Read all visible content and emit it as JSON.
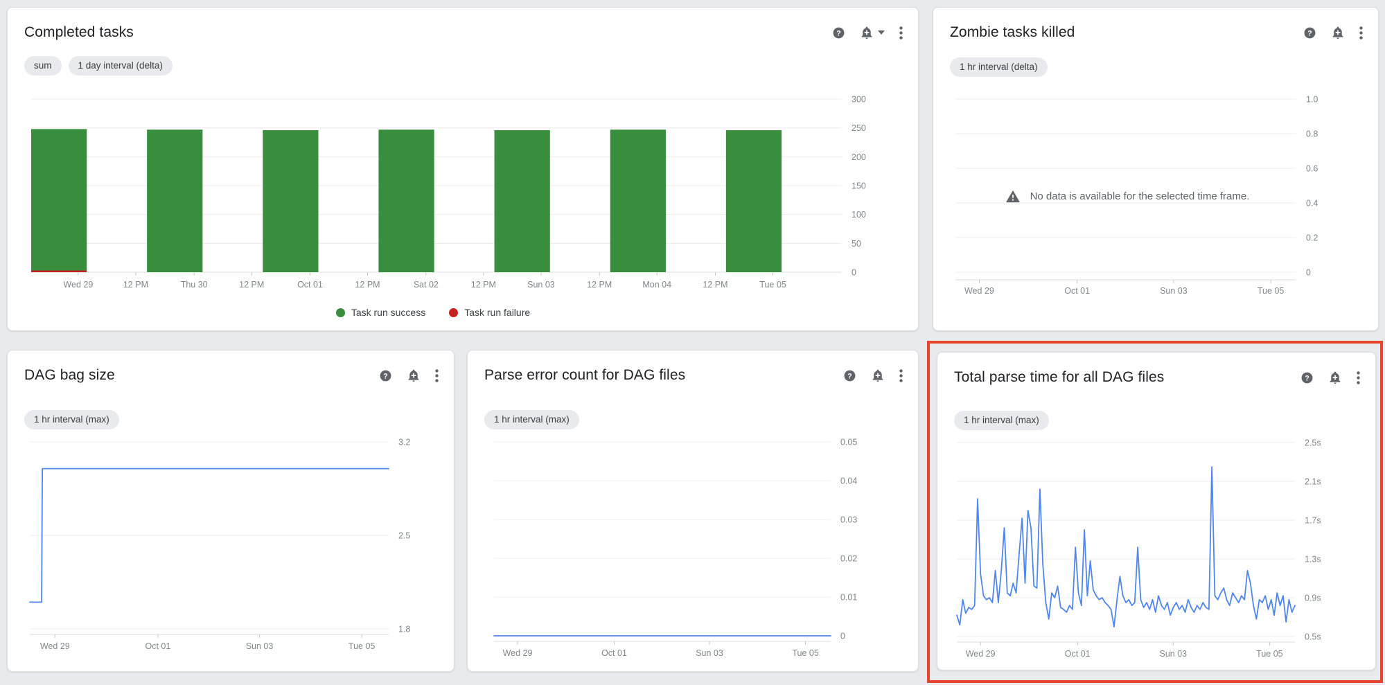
{
  "page": {
    "background": "#e8eaed",
    "highlight_color": "#e8432c"
  },
  "cards": {
    "completed_tasks": {
      "title": "Completed tasks",
      "chips": [
        "sum",
        "1 day interval (delta)"
      ],
      "icons": [
        "help-icon",
        "add-alert-icon",
        "dropdown-caret-icon",
        "more-vert-icon"
      ],
      "legend": [
        {
          "label": "Task run success",
          "color": "#388e3c"
        },
        {
          "label": "Task run failure",
          "color": "#c5221f"
        }
      ]
    },
    "zombie_tasks": {
      "title": "Zombie tasks killed",
      "chips": [
        "1 hr interval (delta)"
      ],
      "icons": [
        "help-icon",
        "add-alert-icon",
        "more-vert-icon"
      ],
      "no_data_message": "No data is available for the selected time frame."
    },
    "dag_bag_size": {
      "title": "DAG bag size",
      "chips": [
        "1 hr interval (max)"
      ],
      "icons": [
        "help-icon",
        "add-alert-icon",
        "more-vert-icon"
      ]
    },
    "parse_error_count": {
      "title": "Parse error count for DAG files",
      "chips": [
        "1 hr interval (max)"
      ],
      "icons": [
        "help-icon",
        "add-alert-icon",
        "more-vert-icon"
      ]
    },
    "total_parse_time": {
      "title": "Total parse time for all DAG files",
      "chips": [
        "1 hr interval (max)"
      ],
      "icons": [
        "help-icon",
        "add-alert-icon",
        "more-vert-icon"
      ],
      "highlighted": true
    }
  },
  "chart_data": [
    {
      "id": "completed_tasks",
      "type": "bar",
      "title": "Completed tasks",
      "categories": [
        "Wed 29",
        "Thu 30",
        "Oct 01",
        "Sat 02",
        "Sun 03",
        "Mon 04",
        "Tue 05"
      ],
      "series": [
        {
          "name": "Task run success",
          "color": "#388e3c",
          "values": [
            245,
            247,
            246,
            247,
            246,
            247,
            246
          ]
        },
        {
          "name": "Task run failure",
          "color": "#c5221f",
          "values": [
            3,
            0,
            0,
            0,
            0,
            0,
            0
          ]
        }
      ],
      "xticks": [
        {
          "label": "Wed 29",
          "pos": 0.058
        },
        {
          "label": "12 PM",
          "pos": 0.129
        },
        {
          "label": "Thu 30",
          "pos": 0.201
        },
        {
          "label": "12 PM",
          "pos": 0.272
        },
        {
          "label": "Oct 01",
          "pos": 0.344
        },
        {
          "label": "12 PM",
          "pos": 0.415
        },
        {
          "label": "Sat 02",
          "pos": 0.487
        },
        {
          "label": "12 PM",
          "pos": 0.558
        },
        {
          "label": "Sun 03",
          "pos": 0.629
        },
        {
          "label": "12 PM",
          "pos": 0.701
        },
        {
          "label": "Mon 04",
          "pos": 0.772
        },
        {
          "label": "12 PM",
          "pos": 0.844
        },
        {
          "label": "Tue 05",
          "pos": 0.915
        }
      ],
      "yticks": [
        {
          "label": "300",
          "value": 300
        },
        {
          "label": "250",
          "value": 250
        },
        {
          "label": "200",
          "value": 200
        },
        {
          "label": "150",
          "value": 150
        },
        {
          "label": "100",
          "value": 100
        },
        {
          "label": "50",
          "value": 50
        },
        {
          "label": "0",
          "value": 0
        }
      ],
      "ylim": [
        0,
        300
      ],
      "grid": true,
      "legend_position": "bottom"
    },
    {
      "id": "zombie_tasks",
      "type": "line",
      "title": "Zombie tasks killed",
      "no_data": true,
      "series": [],
      "xticks": [
        {
          "label": "Wed 29",
          "pos": 0.07
        },
        {
          "label": "Oct 01",
          "pos": 0.357
        },
        {
          "label": "Sun 03",
          "pos": 0.64
        },
        {
          "label": "Tue 05",
          "pos": 0.925
        }
      ],
      "yticks": [
        {
          "label": "1.0",
          "value": 1.0
        },
        {
          "label": "0.8",
          "value": 0.8
        },
        {
          "label": "0.6",
          "value": 0.6
        },
        {
          "label": "0.4",
          "value": 0.4
        },
        {
          "label": "0.2",
          "value": 0.2
        },
        {
          "label": "0",
          "value": 0
        }
      ],
      "ylim": [
        0,
        1.0
      ],
      "grid": true
    },
    {
      "id": "dag_bag_size",
      "type": "line",
      "title": "DAG bag size",
      "series": [
        {
          "name": "DAG bag size",
          "color": "#5086ec",
          "points": [
            [
              0,
              2.0
            ],
            [
              0.033,
              2.0
            ],
            [
              0.035,
              3.0
            ],
            [
              1,
              3.0
            ]
          ]
        }
      ],
      "xticks": [
        {
          "label": "Wed 29",
          "pos": 0.07
        },
        {
          "label": "Oct 01",
          "pos": 0.357
        },
        {
          "label": "Sun 03",
          "pos": 0.64
        },
        {
          "label": "Tue 05",
          "pos": 0.925
        }
      ],
      "yticks": [
        {
          "label": "3.2",
          "value": 3.2
        },
        {
          "label": "2.5",
          "value": 2.5
        },
        {
          "label": "1.8",
          "value": 1.8
        }
      ],
      "ylim": [
        1.8,
        3.2
      ],
      "grid": true
    },
    {
      "id": "parse_error_count",
      "type": "line",
      "title": "Parse error count for DAG files",
      "series": [
        {
          "name": "Parse error count",
          "color": "#5086ec",
          "points": [
            [
              0,
              0
            ],
            [
              1,
              0
            ]
          ]
        }
      ],
      "xticks": [
        {
          "label": "Wed 29",
          "pos": 0.07
        },
        {
          "label": "Oct 01",
          "pos": 0.357
        },
        {
          "label": "Sun 03",
          "pos": 0.64
        },
        {
          "label": "Tue 05",
          "pos": 0.925
        }
      ],
      "yticks": [
        {
          "label": "0.05",
          "value": 0.05
        },
        {
          "label": "0.04",
          "value": 0.04
        },
        {
          "label": "0.03",
          "value": 0.03
        },
        {
          "label": "0.02",
          "value": 0.02
        },
        {
          "label": "0.01",
          "value": 0.01
        },
        {
          "label": "0",
          "value": 0
        }
      ],
      "ylim": [
        0,
        0.05
      ],
      "grid": true
    },
    {
      "id": "total_parse_time",
      "type": "line",
      "title": "Total parse time for all DAG files",
      "unit": "s",
      "series": [
        {
          "name": "Total parse time",
          "color": "#5086ec",
          "values": [
            0.72,
            0.62,
            0.88,
            0.74,
            0.8,
            0.78,
            0.82,
            1.92,
            1.15,
            0.92,
            0.88,
            0.9,
            0.85,
            1.18,
            0.85,
            1.18,
            1.62,
            0.95,
            0.92,
            1.05,
            0.95,
            1.35,
            1.72,
            1.05,
            1.8,
            1.62,
            1.02,
            1.0,
            2.02,
            1.25,
            0.85,
            0.68,
            0.95,
            0.9,
            1.02,
            0.8,
            0.78,
            0.75,
            0.82,
            0.78,
            1.42,
            0.95,
            0.82,
            1.6,
            0.92,
            1.28,
            0.98,
            0.92,
            0.88,
            0.9,
            0.85,
            0.82,
            0.78,
            0.6,
            0.88,
            1.12,
            0.92,
            0.85,
            0.88,
            0.82,
            0.85,
            1.42,
            0.88,
            0.8,
            0.85,
            0.78,
            0.88,
            0.75,
            0.92,
            0.82,
            0.78,
            0.85,
            0.72,
            0.8,
            0.85,
            0.78,
            0.82,
            0.75,
            0.88,
            0.8,
            0.75,
            0.82,
            0.78,
            0.85,
            0.8,
            0.78,
            2.25,
            0.92,
            0.88,
            0.95,
            1.0,
            0.88,
            0.82,
            0.95,
            0.9,
            0.85,
            0.92,
            0.88,
            1.18,
            1.05,
            0.82,
            0.68,
            0.88,
            0.85,
            0.92,
            0.78,
            0.88,
            0.72,
            0.95,
            0.82,
            0.92,
            0.65,
            0.88,
            0.75,
            0.82
          ]
        }
      ],
      "xticks": [
        {
          "label": "Wed 29",
          "pos": 0.07
        },
        {
          "label": "Oct 01",
          "pos": 0.357
        },
        {
          "label": "Sun 03",
          "pos": 0.64
        },
        {
          "label": "Tue 05",
          "pos": 0.925
        }
      ],
      "yticks": [
        {
          "label": "2.5s",
          "value": 2.5
        },
        {
          "label": "2.1s",
          "value": 2.1
        },
        {
          "label": "1.7s",
          "value": 1.7
        },
        {
          "label": "1.3s",
          "value": 1.3
        },
        {
          "label": "0.9s",
          "value": 0.9
        },
        {
          "label": "0.5s",
          "value": 0.5
        }
      ],
      "ylim": [
        0.5,
        2.5
      ],
      "grid": true
    }
  ]
}
